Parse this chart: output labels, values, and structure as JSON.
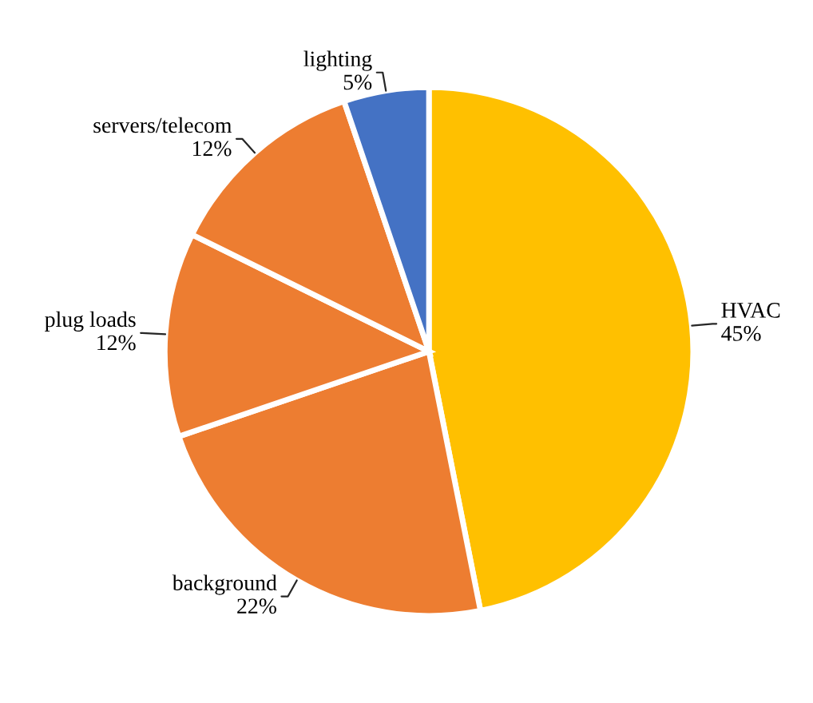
{
  "chart_data": {
    "type": "pie",
    "categories": [
      "HVAC",
      "background",
      "plug loads",
      "servers/telecom",
      "lighting"
    ],
    "values": [
      45,
      22,
      12,
      12,
      5
    ],
    "value_labels": [
      "45%",
      "22%",
      "12%",
      "12%",
      "5%"
    ],
    "colors": [
      "#ffc000",
      "#ed7d31",
      "#ed7d31",
      "#ed7d31",
      "#4472c4"
    ]
  }
}
